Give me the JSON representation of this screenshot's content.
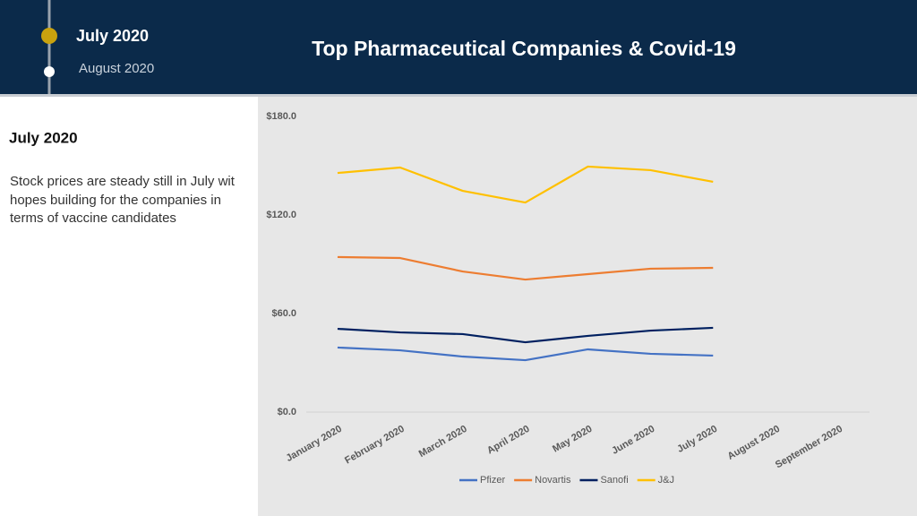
{
  "header": {
    "timeline": [
      "July 2020",
      "August 2020"
    ],
    "title": "Top Pharmaceutical Companies & Covid-19"
  },
  "sidebar": {
    "heading": "July 2020",
    "text": "Stock prices are steady still in July wit hopes building for the companies in terms of vaccine candidates"
  },
  "chart_data": {
    "type": "line",
    "categories": [
      "January 2020",
      "February 2020",
      "March 2020",
      "April 2020",
      "May 2020",
      "June 2020",
      "July 2020",
      "August 2020",
      "September 2020"
    ],
    "series": [
      {
        "name": "Pfizer",
        "color": "#4472c4",
        "values": [
          39.3,
          37.6,
          33.8,
          31.6,
          38.2,
          35.5,
          34.4,
          null,
          null
        ]
      },
      {
        "name": "Novartis",
        "color": "#ed7d31",
        "values": [
          94.4,
          93.8,
          85.6,
          80.7,
          84,
          87.3,
          87.8,
          null,
          null
        ]
      },
      {
        "name": "Sanofi",
        "color": "#002060",
        "values": [
          50.7,
          48.5,
          47.5,
          42.5,
          46.4,
          49.6,
          51.3,
          null,
          null
        ]
      },
      {
        "name": "J&J",
        "color": "#ffc000",
        "values": [
          145.6,
          148.9,
          134.7,
          127.6,
          149.5,
          147.3,
          140.2,
          null,
          null
        ]
      }
    ],
    "ylim": [
      0,
      180
    ],
    "yticks": [
      {
        "value": 0,
        "label": "$0.0"
      },
      {
        "value": 60,
        "label": "$60.0"
      },
      {
        "value": 120,
        "label": "$120.0"
      },
      {
        "value": 180,
        "label": "$180.0"
      }
    ],
    "legend": "bottom"
  }
}
